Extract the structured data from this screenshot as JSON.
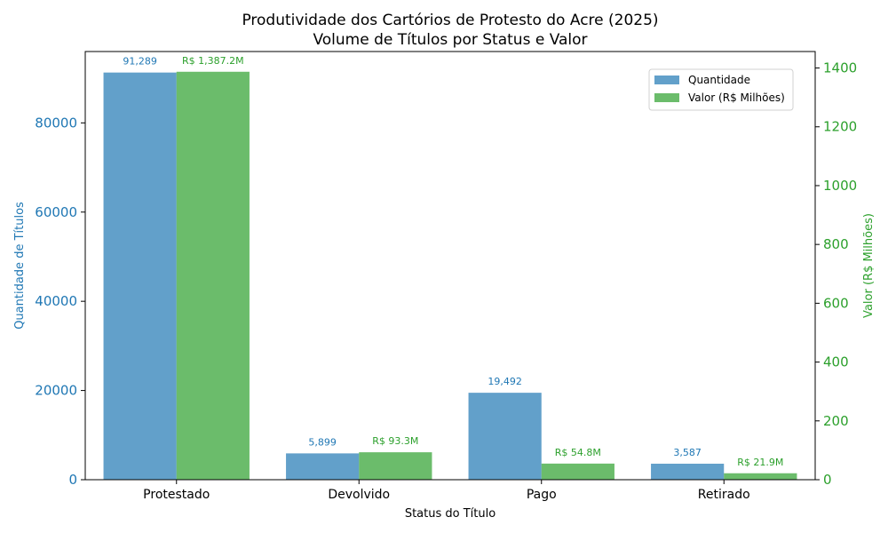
{
  "chart_data": {
    "type": "bar",
    "title_lines": [
      "Produtividade dos Cartórios de Protesto do Acre (2025)",
      "Volume de Títulos por Status e Valor"
    ],
    "xlabel": "Status do Título",
    "ylabel_left": "Quantidade de Títulos",
    "ylabel_right": "Valor (R$ Milhões)",
    "categories": [
      "Protestado",
      "Devolvido",
      "Pago",
      "Retirado"
    ],
    "ylim_left": [
      0,
      96000
    ],
    "ylim_right": [
      0,
      1456
    ],
    "yticks_left": [
      0,
      20000,
      40000,
      60000,
      80000
    ],
    "yticks_right": [
      0,
      200,
      400,
      600,
      800,
      1000,
      1200,
      1400
    ],
    "series": [
      {
        "name": "Quantidade",
        "axis": "left",
        "color": "#1f77b4",
        "values": [
          91289,
          5899,
          19492,
          3587
        ],
        "labels": [
          "91,289",
          "5,899",
          "19,492",
          "3,587"
        ]
      },
      {
        "name": "Valor (R$ Milhões)",
        "axis": "right",
        "color": "#2ca02c",
        "values": [
          1387.2,
          93.3,
          54.8,
          21.9
        ],
        "labels": [
          "R$ 1,387.2M",
          "R$ 93.3M",
          "R$ 54.8M",
          "R$ 21.9M"
        ]
      }
    ],
    "legend_position": "top-right"
  }
}
